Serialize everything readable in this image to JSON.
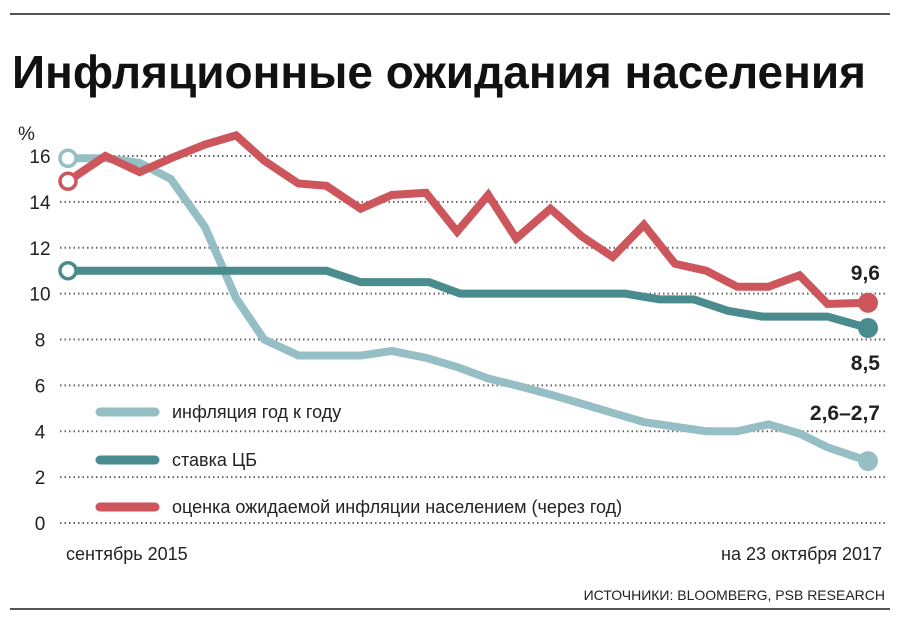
{
  "chart_data": {
    "type": "line",
    "title": "Инфляционные ожидания населения",
    "ylabel": "%",
    "ylim": [
      0,
      16
    ],
    "yticks": [
      0,
      2,
      4,
      6,
      8,
      10,
      12,
      14,
      16
    ],
    "xlim": [
      0,
      25.7
    ],
    "x_start_label": "сентябрь 2015",
    "x_end_label": "на 23 октября 2017",
    "grid": true,
    "legend_position": "bottom-left",
    "series": [
      {
        "name": "инфляция год к году",
        "color": "#95bfc4",
        "end_label": "2,6–2,7",
        "x": [
          0,
          1.2,
          2.3,
          3.3,
          4.4,
          5.4,
          6.3,
          7.4,
          8.3,
          9.4,
          10.4,
          11.5,
          12.5,
          13.5,
          14.4,
          15.5,
          16.5,
          17.5,
          18.5,
          19.5,
          20.5,
          21.5,
          22.5,
          23.5,
          24.4,
          25.7
        ],
        "y": [
          15.9,
          15.9,
          15.7,
          15.0,
          12.9,
          9.8,
          8.0,
          7.3,
          7.3,
          7.3,
          7.5,
          7.2,
          6.8,
          6.3,
          6.0,
          5.6,
          5.2,
          4.8,
          4.4,
          4.2,
          4.0,
          4.0,
          4.3,
          3.9,
          3.3,
          2.7
        ]
      },
      {
        "name": "ставка ЦБ",
        "color": "#4a8b8e",
        "end_label": "8,5",
        "x": [
          0,
          8.3,
          9.4,
          11.6,
          12.6,
          17.9,
          19.0,
          20.1,
          21.2,
          22.3,
          24.4,
          25.7
        ],
        "y": [
          11,
          11,
          10.5,
          10.5,
          10,
          10,
          9.75,
          9.75,
          9.25,
          9,
          9,
          8.5
        ]
      },
      {
        "name": "оценка ожидаемой инфляции населением (через год)",
        "color": "#cc565b",
        "end_label": "9,6",
        "x": [
          0,
          1.2,
          2.3,
          3.3,
          4.4,
          5.4,
          6.3,
          7.4,
          8.3,
          9.4,
          10.4,
          11.5,
          12.5,
          13.5,
          14.4,
          15.5,
          16.5,
          17.5,
          18.5,
          19.5,
          20.5,
          21.5,
          22.5,
          23.5,
          24.4,
          25.7
        ],
        "y": [
          14.9,
          16.0,
          15.3,
          15.9,
          16.5,
          16.9,
          15.8,
          14.8,
          14.7,
          13.7,
          14.3,
          14.4,
          12.7,
          14.3,
          12.4,
          13.7,
          12.5,
          11.6,
          13.0,
          11.3,
          11.0,
          10.3,
          10.3,
          10.8,
          9.55,
          9.6
        ]
      }
    ]
  },
  "source": "ИСТОЧНИКИ: BLOOMBERG, PSB RESEARCH"
}
